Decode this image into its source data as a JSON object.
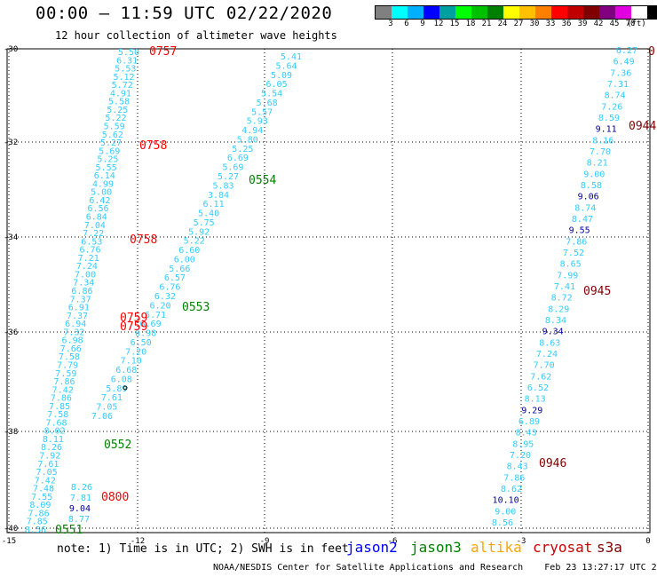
{
  "title": "00:00 – 11:59 UTC 02/22/2020",
  "subtitle": "12 hour collection of altimeter wave heights",
  "color_scale": {
    "colors": [
      "#808080",
      "#00ffff",
      "#00b0ff",
      "#0000ff",
      "#00a0a0",
      "#00ff00",
      "#00c000",
      "#008000",
      "#ffff00",
      "#ffc000",
      "#ff8000",
      "#ff0000",
      "#c00000",
      "#800000",
      "#800080",
      "#e000e0",
      "#ffffff",
      "#000000"
    ],
    "labels": [
      "3",
      "6",
      "9",
      "12",
      "15",
      "18",
      "21",
      "24",
      "27",
      "30",
      "33",
      "36",
      "39",
      "42",
      "45",
      "70"
    ],
    "unit": "(ft)"
  },
  "axes": {
    "y_ticks": [
      "-30",
      "-32",
      "-34",
      "-36",
      "-38",
      "-40"
    ],
    "x_ticks": [
      "-15",
      "-12",
      "-9",
      "-6",
      "-3",
      "0"
    ]
  },
  "tracks": {
    "left": {
      "points": [
        {
          "v": "5.50",
          "c": "#33ccff"
        },
        {
          "v": "6.31",
          "c": "#33ccff"
        },
        {
          "v": "5.53",
          "c": "#33ccff"
        },
        {
          "v": "5.12",
          "c": "#33ccff"
        },
        {
          "v": "5.72",
          "c": "#33ccff"
        },
        {
          "v": "4.91",
          "c": "#33ccff"
        },
        {
          "v": "5.58",
          "c": "#33ccff"
        },
        {
          "v": "5.25",
          "c": "#33ccff"
        },
        {
          "v": "5.22",
          "c": "#33ccff"
        },
        {
          "v": "5.59",
          "c": "#33ccff"
        },
        {
          "v": "5.62",
          "c": "#33ccff"
        },
        {
          "v": "5.27",
          "c": "#33ccff"
        },
        {
          "v": "5.69",
          "c": "#33ccff"
        },
        {
          "v": "5.25",
          "c": "#33ccff"
        },
        {
          "v": "5.55",
          "c": "#33ccff"
        },
        {
          "v": "6.14",
          "c": "#33ccff"
        },
        {
          "v": "4.99",
          "c": "#33ccff"
        },
        {
          "v": "5.00",
          "c": "#33ccff"
        },
        {
          "v": "6.42",
          "c": "#33ccff"
        },
        {
          "v": "6.56",
          "c": "#33ccff"
        },
        {
          "v": "6.84",
          "c": "#33ccff"
        },
        {
          "v": "7.04",
          "c": "#33ccff"
        },
        {
          "v": "7.22",
          "c": "#33ccff"
        },
        {
          "v": "6.53",
          "c": "#33ccff"
        },
        {
          "v": "6.76",
          "c": "#33ccff"
        },
        {
          "v": "7.21",
          "c": "#33ccff"
        },
        {
          "v": "7.24",
          "c": "#33ccff"
        },
        {
          "v": "7.00",
          "c": "#33ccff"
        },
        {
          "v": "7.34",
          "c": "#33ccff"
        },
        {
          "v": "6.86",
          "c": "#33ccff"
        },
        {
          "v": "7.37",
          "c": "#33ccff"
        },
        {
          "v": "6.91",
          "c": "#33ccff"
        },
        {
          "v": "7.37",
          "c": "#33ccff"
        },
        {
          "v": "6.94",
          "c": "#33ccff"
        },
        {
          "v": "7.32",
          "c": "#33ccff"
        },
        {
          "v": "6.98",
          "c": "#33ccff"
        },
        {
          "v": "7.66",
          "c": "#33ccff"
        },
        {
          "v": "7.58",
          "c": "#33ccff"
        },
        {
          "v": "7.79",
          "c": "#33ccff"
        },
        {
          "v": "7.59",
          "c": "#33ccff"
        },
        {
          "v": "7.86",
          "c": "#33ccff"
        },
        {
          "v": "7.42",
          "c": "#33ccff"
        },
        {
          "v": "7.86",
          "c": "#33ccff"
        },
        {
          "v": "7.85",
          "c": "#33ccff"
        },
        {
          "v": "7.58",
          "c": "#33ccff"
        },
        {
          "v": "7.68",
          "c": "#33ccff"
        },
        {
          "v": "8.02",
          "c": "#33ccff"
        },
        {
          "v": "8.11",
          "c": "#33ccff"
        },
        {
          "v": "8.26",
          "c": "#33ccff"
        },
        {
          "v": "7.92",
          "c": "#33ccff"
        },
        {
          "v": "7.61",
          "c": "#33ccff"
        },
        {
          "v": "7.05",
          "c": "#33ccff"
        },
        {
          "v": "7.42",
          "c": "#33ccff"
        },
        {
          "v": "7.48",
          "c": "#33ccff"
        },
        {
          "v": "7.55",
          "c": "#33ccff"
        },
        {
          "v": "8.09",
          "c": "#33ccff"
        },
        {
          "v": "7.86",
          "c": "#33ccff"
        },
        {
          "v": "7.85",
          "c": "#33ccff"
        },
        {
          "v": "8.56",
          "c": "#33ccff"
        }
      ],
      "inner": [
        {
          "v": "8.26",
          "c": "#33ccff"
        },
        {
          "v": "7.81",
          "c": "#33ccff"
        },
        {
          "v": "9.04",
          "c": "#000099"
        },
        {
          "v": "8.77",
          "c": "#33ccff"
        }
      ]
    },
    "middle": {
      "points": [
        {
          "v": "5.41",
          "c": "#33ccff"
        },
        {
          "v": "5.64",
          "c": "#33ccff"
        },
        {
          "v": "5.09",
          "c": "#33ccff"
        },
        {
          "v": "6.05",
          "c": "#33ccff"
        },
        {
          "v": "5.54",
          "c": "#33ccff"
        },
        {
          "v": "5.68",
          "c": "#33ccff"
        },
        {
          "v": "5.57",
          "c": "#33ccff"
        },
        {
          "v": "5.93",
          "c": "#33ccff"
        },
        {
          "v": "4.94",
          "c": "#33ccff"
        },
        {
          "v": "5.80",
          "c": "#33ccff"
        },
        {
          "v": "5.25",
          "c": "#33ccff"
        },
        {
          "v": "6.69",
          "c": "#33ccff"
        },
        {
          "v": "5.69",
          "c": "#33ccff"
        },
        {
          "v": "5.27",
          "c": "#33ccff"
        },
        {
          "v": "5.83",
          "c": "#33ccff"
        },
        {
          "v": "3.84",
          "c": "#33ccff"
        },
        {
          "v": "6.11",
          "c": "#33ccff"
        },
        {
          "v": "5.40",
          "c": "#33ccff"
        },
        {
          "v": "5.75",
          "c": "#33ccff"
        },
        {
          "v": "5.92",
          "c": "#33ccff"
        },
        {
          "v": "5.22",
          "c": "#33ccff"
        },
        {
          "v": "6.60",
          "c": "#33ccff"
        },
        {
          "v": "6.00",
          "c": "#33ccff"
        },
        {
          "v": "5.66",
          "c": "#33ccff"
        },
        {
          "v": "6.57",
          "c": "#33ccff"
        },
        {
          "v": "6.76",
          "c": "#33ccff"
        },
        {
          "v": "6.32",
          "c": "#33ccff"
        },
        {
          "v": "6.20",
          "c": "#33ccff"
        },
        {
          "v": "6.71",
          "c": "#33ccff"
        },
        {
          "v": "6.69",
          "c": "#33ccff"
        },
        {
          "v": "6.98",
          "c": "#33ccff"
        },
        {
          "v": "6.50",
          "c": "#33ccff"
        },
        {
          "v": "7.20",
          "c": "#33ccff"
        },
        {
          "v": "7.10",
          "c": "#33ccff"
        },
        {
          "v": "6.68",
          "c": "#33ccff"
        },
        {
          "v": "6.08",
          "c": "#33ccff"
        },
        {
          "v": "5.89",
          "c": "#33ccff"
        },
        {
          "v": "7.61",
          "c": "#33ccff"
        },
        {
          "v": "7.05",
          "c": "#33ccff"
        },
        {
          "v": "7.06",
          "c": "#33ccff"
        }
      ]
    },
    "right": {
      "points": [
        {
          "v": "6.27",
          "c": "#33ccff"
        },
        {
          "v": "6.49",
          "c": "#33ccff"
        },
        {
          "v": "7.36",
          "c": "#33ccff"
        },
        {
          "v": "7.31",
          "c": "#33ccff"
        },
        {
          "v": "8.74",
          "c": "#33ccff"
        },
        {
          "v": "7.26",
          "c": "#33ccff"
        },
        {
          "v": "8.59",
          "c": "#33ccff"
        },
        {
          "v": "9.11",
          "c": "#000099"
        },
        {
          "v": "8.16",
          "c": "#33ccff"
        },
        {
          "v": "7.70",
          "c": "#33ccff"
        },
        {
          "v": "8.21",
          "c": "#33ccff"
        },
        {
          "v": "9.00",
          "c": "#33ccff"
        },
        {
          "v": "8.58",
          "c": "#33ccff"
        },
        {
          "v": "9.06",
          "c": "#000099"
        },
        {
          "v": "8.74",
          "c": "#33ccff"
        },
        {
          "v": "8.47",
          "c": "#33ccff"
        },
        {
          "v": "9.55",
          "c": "#000099"
        },
        {
          "v": "7.86",
          "c": "#33ccff"
        },
        {
          "v": "7.52",
          "c": "#33ccff"
        },
        {
          "v": "8.65",
          "c": "#33ccff"
        },
        {
          "v": "7.99",
          "c": "#33ccff"
        },
        {
          "v": "7.41",
          "c": "#33ccff"
        },
        {
          "v": "8.72",
          "c": "#33ccff"
        },
        {
          "v": "8.29",
          "c": "#33ccff"
        },
        {
          "v": "8.34",
          "c": "#33ccff"
        },
        {
          "v": "9.34",
          "c": "#000099"
        },
        {
          "v": "8.63",
          "c": "#33ccff"
        },
        {
          "v": "7.24",
          "c": "#33ccff"
        },
        {
          "v": "7.70",
          "c": "#33ccff"
        },
        {
          "v": "7.62",
          "c": "#33ccff"
        },
        {
          "v": "6.52",
          "c": "#33ccff"
        },
        {
          "v": "8.13",
          "c": "#33ccff"
        },
        {
          "v": "9.29",
          "c": "#000099"
        },
        {
          "v": "6.89",
          "c": "#33ccff"
        },
        {
          "v": "8.43",
          "c": "#33ccff"
        },
        {
          "v": "8.95",
          "c": "#33ccff"
        },
        {
          "v": "7.20",
          "c": "#33ccff"
        },
        {
          "v": "8.43",
          "c": "#33ccff"
        },
        {
          "v": "7.86",
          "c": "#33ccff"
        },
        {
          "v": "8.62",
          "c": "#33ccff"
        },
        {
          "v": "10.10",
          "c": "#000099"
        },
        {
          "v": "9.00",
          "c": "#33ccff"
        },
        {
          "v": "8.56",
          "c": "#33ccff"
        }
      ]
    }
  },
  "time_labels": [
    {
      "t": "0757",
      "c": "#ff0000"
    },
    {
      "t": "0758",
      "c": "#ff0000"
    },
    {
      "t": "0758",
      "c": "#ff0000"
    },
    {
      "t": "0759",
      "c": "#ff0000"
    },
    {
      "t": "0759",
      "c": "#ff0000"
    },
    {
      "t": "0800",
      "c": "#ff0000"
    },
    {
      "t": "0554",
      "c": "#008000"
    },
    {
      "t": "0553",
      "c": "#008000"
    },
    {
      "t": "0552",
      "c": "#008000"
    },
    {
      "t": "0551",
      "c": "#008000"
    },
    {
      "t": "0944",
      "c": "#800000"
    },
    {
      "t": "0945",
      "c": "#800000"
    },
    {
      "t": "0946",
      "c": "#800000"
    },
    {
      "t": "0",
      "c": "#800000"
    }
  ],
  "note": "note: 1) Time is in UTC; 2) SWH is in feet",
  "satellites": [
    {
      "name": "jason2",
      "c": "#0000ff"
    },
    {
      "name": "jason3",
      "c": "#008000"
    },
    {
      "name": "altika",
      "c": "#ffa500"
    },
    {
      "name": "cryosat",
      "c": "#cc0000"
    },
    {
      "name": "s3a",
      "c": "#800000"
    }
  ],
  "footer": "NOAA/NESDIS Center for Satellite Applications and Research    Feb 23 13:27:17 UTC 2020"
}
